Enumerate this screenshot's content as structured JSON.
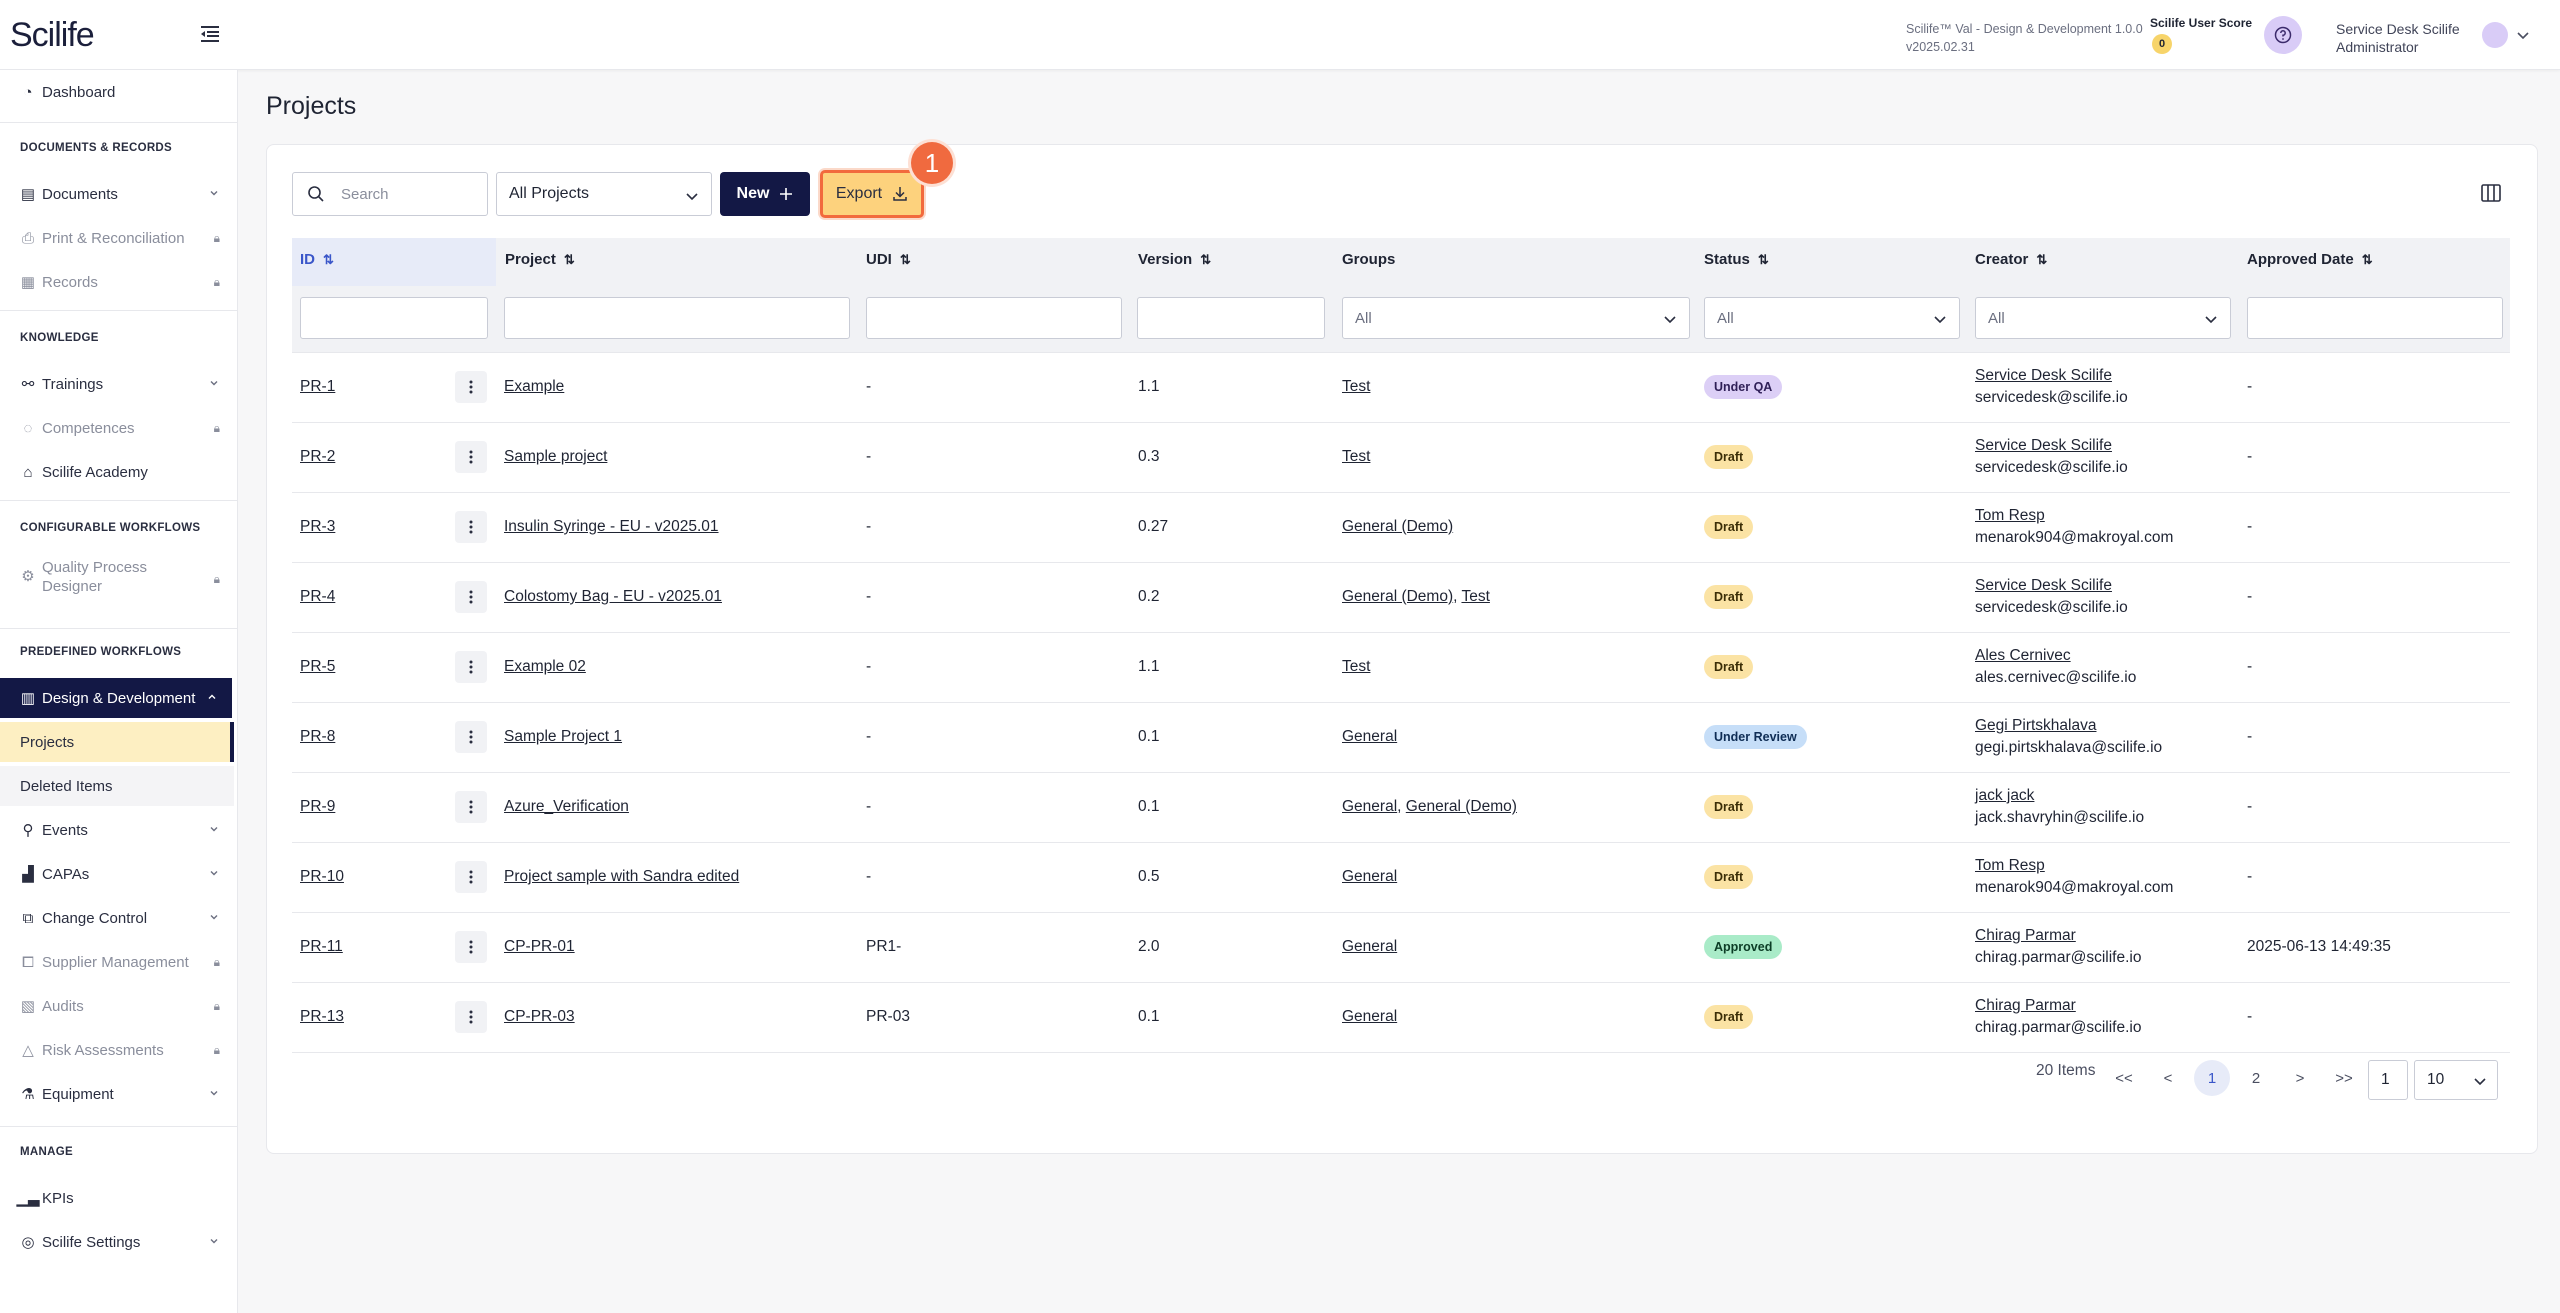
{
  "app": {
    "logo": "Scilife",
    "version_line1": "Scilife™ Val - Design & Development 1.0.0",
    "version_line2": "v2025.02.31",
    "score_label": "Scilife User Score",
    "score_value": "0",
    "user_name": "Service Desk Scilife",
    "user_role": "Administrator"
  },
  "sidebar": {
    "dashboard": "Dashboard",
    "sec_docs": "DOCUMENTS & RECORDS",
    "documents": "Documents",
    "print": "Print & Reconciliation",
    "records": "Records",
    "sec_knowledge": "KNOWLEDGE",
    "trainings": "Trainings",
    "competences": "Competences",
    "academy": "Scilife Academy",
    "sec_config": "CONFIGURABLE WORKFLOWS",
    "qpd1": "Quality Process",
    "qpd2": "Designer",
    "sec_predef": "PREDEFINED WORKFLOWS",
    "design": "Design & Development",
    "projects": "Projects",
    "deleted": "Deleted Items",
    "events": "Events",
    "capas": "CAPAs",
    "change": "Change Control",
    "supplier": "Supplier Management",
    "audits": "Audits",
    "risk": "Risk Assessments",
    "equipment": "Equipment",
    "sec_manage": "MANAGE",
    "kpis": "KPIs",
    "settings": "Scilife Settings"
  },
  "page": {
    "title": "Projects"
  },
  "toolbar": {
    "search_placeholder": "Search",
    "project_filter": "All Projects",
    "new_label": "New",
    "export_label": "Export",
    "step_number": "1"
  },
  "table": {
    "headers": {
      "id": "ID",
      "project": "Project",
      "udi": "UDI",
      "version": "Version",
      "groups": "Groups",
      "status": "Status",
      "creator": "Creator",
      "approved": "Approved Date"
    },
    "filter_all": "All",
    "rows": [
      {
        "id": "PR-1",
        "project": "Example",
        "udi": "-",
        "version": "1.1",
        "groups": [
          {
            "t": "Test"
          }
        ],
        "status": "Under QA",
        "creator": "Service Desk Scilife",
        "email": "servicedesk@scilife.io",
        "approved": "-"
      },
      {
        "id": "PR-2",
        "project": "Sample project",
        "udi": "-",
        "version": "0.3",
        "groups": [
          {
            "t": "Test"
          }
        ],
        "status": "Draft",
        "creator": "Service Desk Scilife",
        "email": "servicedesk@scilife.io",
        "approved": "-"
      },
      {
        "id": "PR-3",
        "project": "Insulin Syringe - EU - v2025.01",
        "udi": "-",
        "version": "0.27",
        "groups": [
          {
            "t": "General (Demo)"
          }
        ],
        "status": "Draft",
        "creator": "Tom Resp",
        "email": "menarok904@makroyal.com",
        "approved": "-"
      },
      {
        "id": "PR-4",
        "project": "Colostomy Bag - EU - v2025.01",
        "udi": "-",
        "version": "0.2",
        "groups": [
          {
            "t": "General (Demo)"
          },
          {
            "t": "Test"
          }
        ],
        "status": "Draft",
        "creator": "Service Desk Scilife",
        "email": "servicedesk@scilife.io",
        "approved": "-"
      },
      {
        "id": "PR-5",
        "project": "Example 02",
        "udi": "-",
        "version": "1.1",
        "groups": [
          {
            "t": "Test"
          }
        ],
        "status": "Draft",
        "creator": "Ales Cernivec",
        "email": "ales.cernivec@scilife.io",
        "approved": "-"
      },
      {
        "id": "PR-8",
        "project": "Sample Project 1",
        "udi": "-",
        "version": "0.1",
        "groups": [
          {
            "t": "General"
          }
        ],
        "status": "Under Review",
        "creator": "Gegi Pirtskhalava",
        "email": "gegi.pirtskhalava@scilife.io",
        "approved": "-"
      },
      {
        "id": "PR-9",
        "project": "Azure_Verification",
        "udi": "-",
        "version": "0.1",
        "groups": [
          {
            "t": "General"
          },
          {
            "t": "General (Demo)"
          }
        ],
        "status": "Draft",
        "creator": "jack jack",
        "email": "jack.shavryhin@scilife.io",
        "approved": "-"
      },
      {
        "id": "PR-10",
        "project": "Project sample with Sandra edited",
        "udi": "-",
        "version": "0.5",
        "groups": [
          {
            "t": "General"
          }
        ],
        "status": "Draft",
        "creator": "Tom Resp",
        "email": "menarok904@makroyal.com",
        "approved": "-"
      },
      {
        "id": "PR-11",
        "project": "CP-PR-01",
        "udi": "PR1-",
        "version": "2.0",
        "groups": [
          {
            "t": "General"
          }
        ],
        "status": "Approved",
        "creator": "Chirag Parmar",
        "email": "chirag.parmar@scilife.io",
        "approved": "2025-06-13 14:49:35"
      },
      {
        "id": "PR-13",
        "project": "CP-PR-03",
        "udi": "PR-03",
        "version": "0.1",
        "groups": [
          {
            "t": "General"
          }
        ],
        "status": "Draft",
        "creator": "Chirag Parmar",
        "email": "chirag.parmar@scilife.io",
        "approved": "-"
      }
    ]
  },
  "pagination": {
    "items": "20 Items",
    "first": "<<",
    "prev": "<",
    "page1": "1",
    "page2": "2",
    "next": ">",
    "last": ">>",
    "goto": "1",
    "page_size": "10"
  },
  "colors": {
    "navy": "#131845",
    "export_bg": "#fdd27d",
    "highlight": "#f06a3f"
  }
}
